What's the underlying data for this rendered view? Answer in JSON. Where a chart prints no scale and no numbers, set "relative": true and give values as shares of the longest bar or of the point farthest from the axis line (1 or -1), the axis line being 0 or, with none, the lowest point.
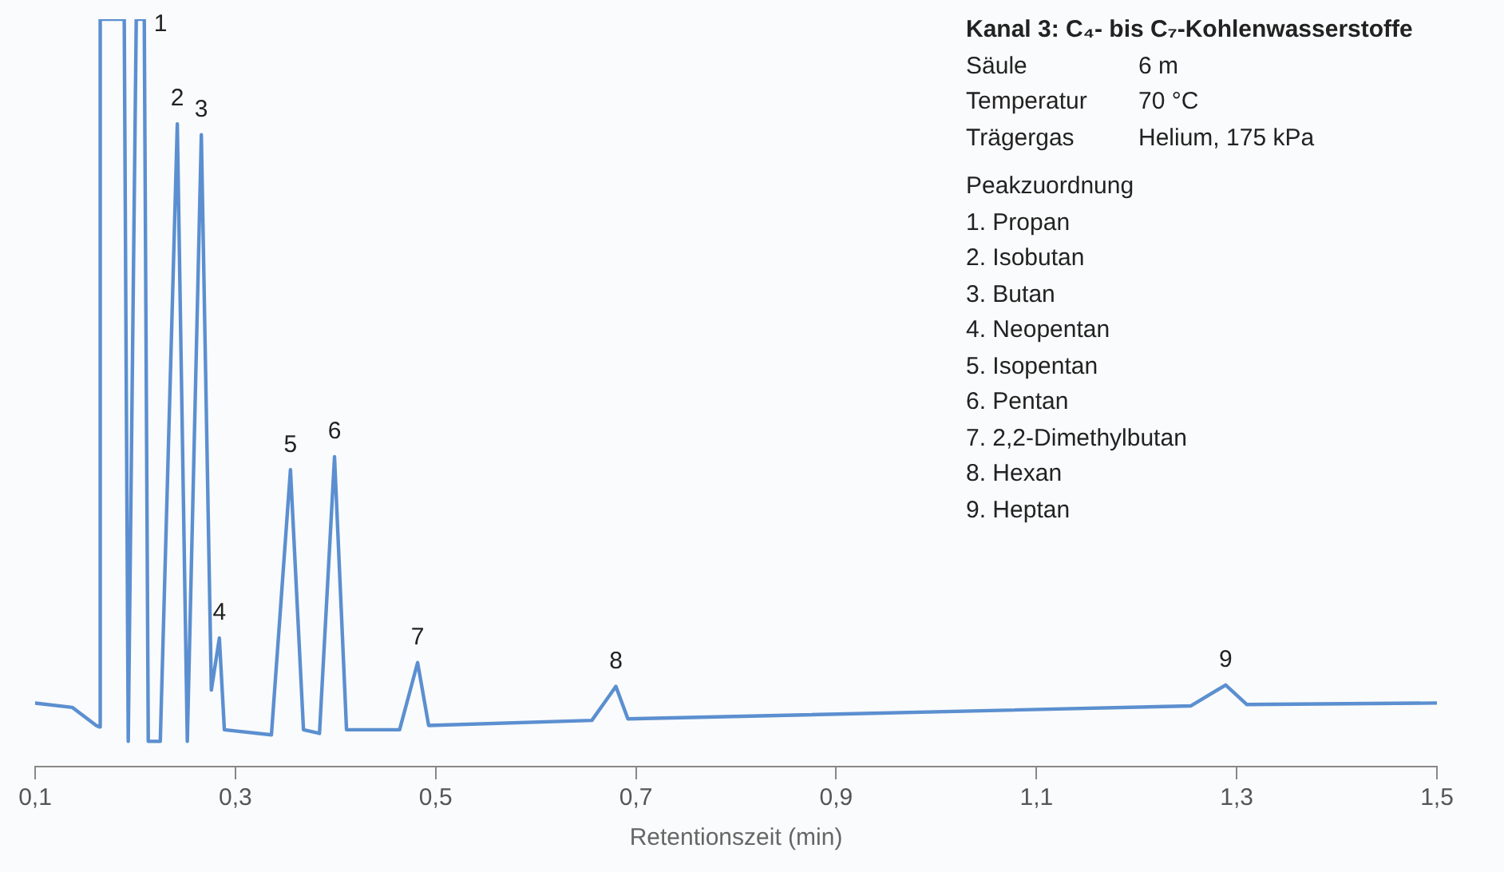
{
  "chart_data": {
    "type": "line",
    "relative": true,
    "title": "Kanal 3: C₄- bis C₇-Kohlenwasserstoffe",
    "xlabel": "Retentionszeit (min)",
    "x": [
      0.1,
      0.137,
      0.161,
      0.164,
      0.165,
      0.189,
      0.193,
      0.201,
      0.209,
      0.213,
      0.225,
      0.242,
      0.252,
      0.266,
      0.276,
      0.284,
      0.289,
      0.336,
      0.355,
      0.368,
      0.384,
      0.399,
      0.411,
      0.464,
      0.482,
      0.493,
      0.656,
      0.68,
      0.692,
      1.254,
      1.289,
      1.31,
      1.5
    ],
    "series": [
      {
        "color": "#5b8fd0",
        "values": [
          0.053,
          0.047,
          0.022,
          0.02,
          1,
          1,
          0,
          1,
          1,
          0,
          0,
          0.855,
          0,
          0.84,
          0.071,
          0.143,
          0.016,
          0.009,
          0.376,
          0.016,
          0.011,
          0.394,
          0.016,
          0.016,
          0.109,
          0.022,
          0.029,
          0.076,
          0.031,
          0.049,
          0.078,
          0.051,
          0.053
        ]
      }
    ],
    "xlim": [
      0.1,
      1.5
    ],
    "xticks": [
      {
        "value": 0.1,
        "label": "0,1"
      },
      {
        "value": 0.3,
        "label": "0,3"
      },
      {
        "value": 0.5,
        "label": "0,5"
      },
      {
        "value": 0.7,
        "label": "0,7"
      },
      {
        "value": 0.9,
        "label": "0,9"
      },
      {
        "value": 1.1,
        "label": "1,1"
      },
      {
        "value": 1.3,
        "label": "1,3"
      },
      {
        "value": 1.5,
        "label": "1,5"
      }
    ],
    "grid": false,
    "legend": false,
    "marker": "none",
    "line_style": "solid",
    "annotations": [
      {
        "text": "1",
        "x": 0.209,
        "y": 1
      },
      {
        "text": "2",
        "x": 0.242,
        "y": 0.855
      },
      {
        "text": "3",
        "x": 0.266,
        "y": 0.84
      },
      {
        "text": "4",
        "x": 0.284,
        "y": 0.143
      },
      {
        "text": "5",
        "x": 0.355,
        "y": 0.376
      },
      {
        "text": "6",
        "x": 0.399,
        "y": 0.394
      },
      {
        "text": "7",
        "x": 0.482,
        "y": 0.109
      },
      {
        "text": "8",
        "x": 0.68,
        "y": 0.076
      },
      {
        "text": "9",
        "x": 1.289,
        "y": 0.078
      },
      "Säule",
      "6 m",
      "Temperatur",
      "70 °C",
      "Trägergas",
      "Helium, 175 kPa",
      "Peakzuordnung",
      "1. Propan",
      "2. Isobutan",
      "3. Butan",
      "4. Neopentan",
      "5. Isopentan",
      "6. Pentan",
      "7. 2,2-Dimethylbutan",
      "8. Hexan",
      "9. Heptan"
    ]
  }
}
